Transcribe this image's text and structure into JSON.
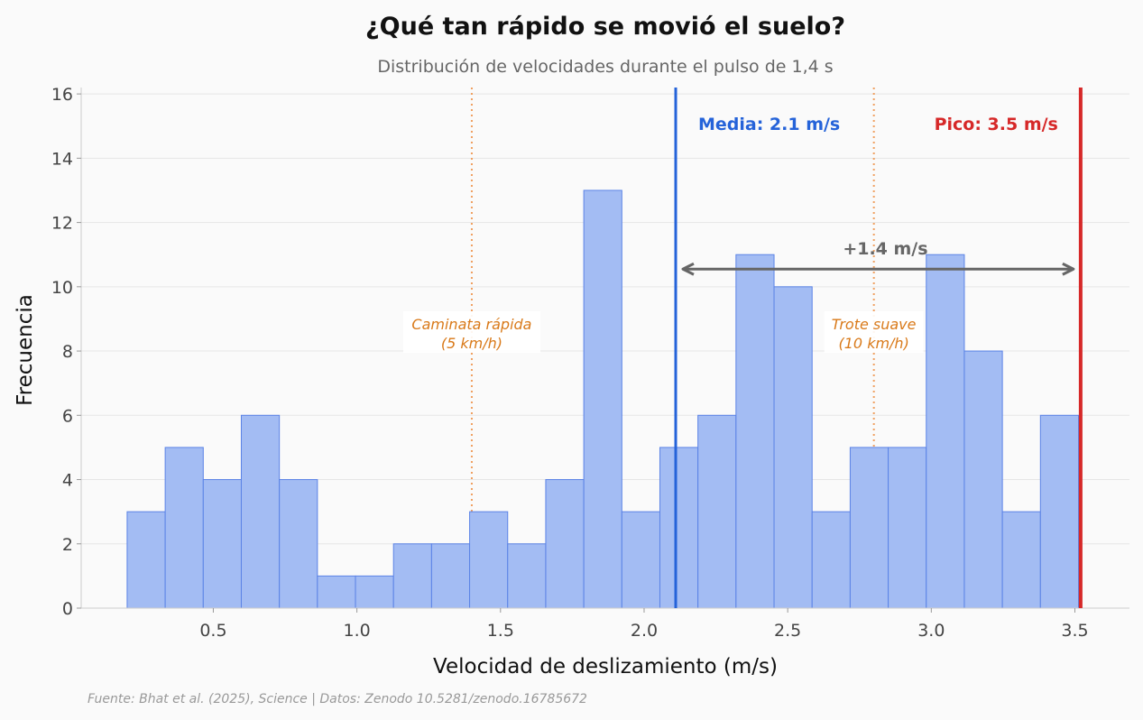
{
  "chart_data": {
    "type": "bar",
    "title": "¿Qué tan rápido se movió el suelo?",
    "subtitle": "Distribución de velocidades durante el pulso de 1,4 s",
    "xlabel": "Velocidad de deslizamiento (m/s)",
    "ylabel": "Frecuencia",
    "source": "Fuente: Bhat et al. (2025), Science | Datos: Zenodo 10.5281/zenodo.16785672",
    "xlim": [
      0.04,
      3.69
    ],
    "ylim": [
      0,
      16.2
    ],
    "grid": true,
    "xticks": [
      0.5,
      1.0,
      1.5,
      2.0,
      2.5,
      3.0,
      3.5
    ],
    "xtick_labels": [
      "0.5",
      "1.0",
      "1.5",
      "2.0",
      "2.5",
      "3.0",
      "3.5"
    ],
    "yticks": [
      0,
      2,
      4,
      6,
      8,
      10,
      12,
      14,
      16
    ],
    "ytick_labels": [
      "0",
      "2",
      "4",
      "6",
      "8",
      "10",
      "12",
      "14",
      "16"
    ],
    "bin_start": 0.2,
    "bin_width": 0.1325,
    "values": [
      3,
      5,
      4,
      6,
      4,
      1,
      1,
      2,
      2,
      3,
      2,
      4,
      13,
      3,
      5,
      6,
      11,
      10,
      3,
      5,
      5,
      11,
      8,
      3,
      6
    ],
    "bar_color": "#a3bcf3",
    "bar_edge_color": "#5b83e6",
    "reference_lines": [
      {
        "x": 1.4,
        "label_line1": "Caminata rápida",
        "label_line2": "(5 km/h)",
        "color": "#f0a060"
      },
      {
        "x": 2.8,
        "label_line1": "Trote suave",
        "label_line2": "(10 km/h)",
        "color": "#f0a060"
      }
    ],
    "mean": {
      "x": 2.11,
      "label": "Media: 2.1 m/s",
      "color": "#2563d9"
    },
    "peak": {
      "x": 3.52,
      "label": "Pico: 3.5 m/s",
      "color": "#d62828"
    },
    "difference": {
      "label": "+1.4 m/s",
      "y": 10.55,
      "color": "#666666"
    }
  }
}
